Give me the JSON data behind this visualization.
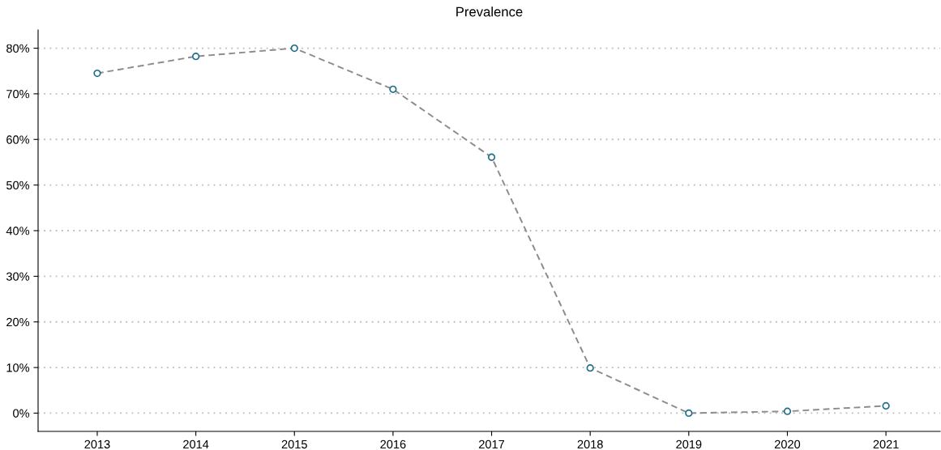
{
  "chart_data": {
    "type": "line",
    "title": "Prevalence",
    "x": [
      2013,
      2014,
      2015,
      2016,
      2017,
      2018,
      2019,
      2020,
      2021
    ],
    "series": [
      {
        "color": "#8c8c8c",
        "colors": [
          "#1f6f8b",
          "#1f6f8b",
          "#1f6f8b",
          "#1f6f8b",
          "#1f6f8b",
          "#1f6f8b",
          "#1f6f8b",
          "#1f6f8b",
          "#1f6f8b"
        ],
        "values": [
          74.5,
          78.2,
          80.0,
          71.0,
          56.1,
          9.9,
          0.0,
          0.4,
          1.6
        ]
      }
    ],
    "xlim": [
      2012.4,
      2021.55
    ],
    "xticks": [
      2013,
      2014,
      2015,
      2016,
      2017,
      2018,
      2019,
      2020,
      2021
    ],
    "ylim": [
      -4,
      84
    ],
    "yticks": [
      {
        "value": 0,
        "label": "0%"
      },
      {
        "value": 10,
        "label": "10%"
      },
      {
        "value": 20,
        "label": "20%"
      },
      {
        "value": 30,
        "label": "30%"
      },
      {
        "value": 40,
        "label": "40%"
      },
      {
        "value": 50,
        "label": "50%"
      },
      {
        "value": 60,
        "label": "60%"
      },
      {
        "value": 70,
        "label": "70%"
      },
      {
        "value": 80,
        "label": "80%"
      }
    ],
    "grid": "y",
    "marker": "circle",
    "line_style": "dashed"
  }
}
